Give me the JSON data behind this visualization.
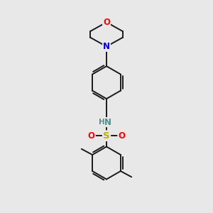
{
  "background_color": "#e8e8e8",
  "bond_color": "#1a1a1a",
  "atom_colors": {
    "O": "#ff0000",
    "N_morpholine": "#0000cc",
    "N_sulfonamide": "#4a9090",
    "S": "#b8b000",
    "H": "#4a9090"
  },
  "figsize": [
    3.0,
    3.0
  ],
  "dpi": 100
}
